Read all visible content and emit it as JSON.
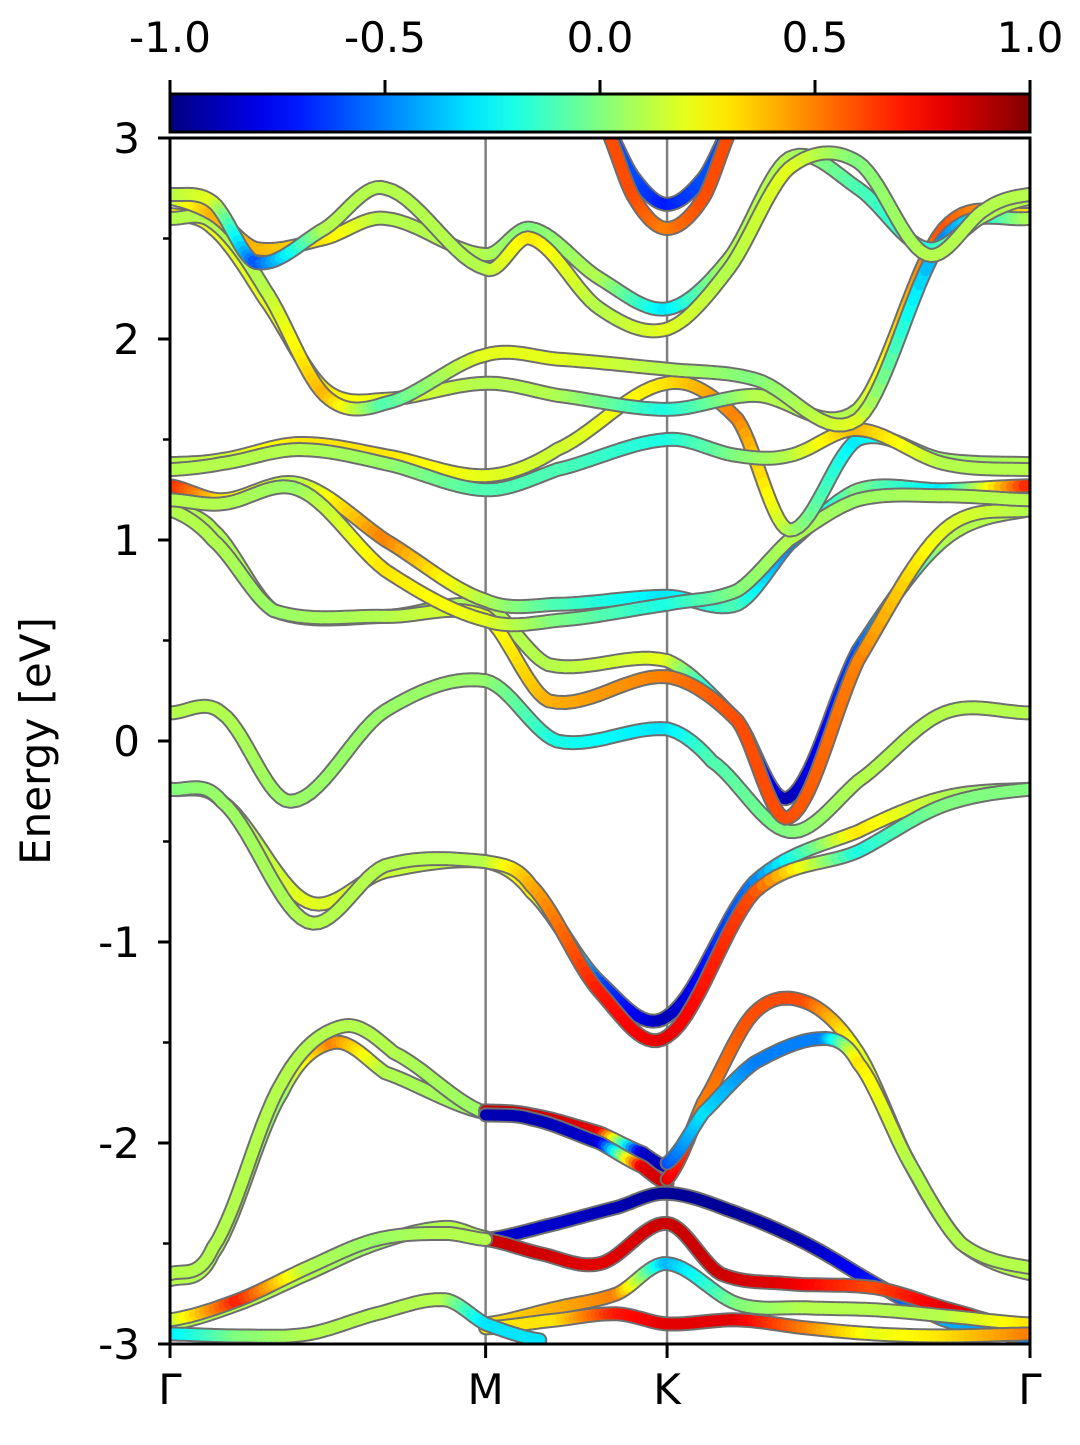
{
  "chart_data": {
    "type": "line",
    "ylabel": "Energy [eV]",
    "ylim": [
      -3,
      3
    ],
    "yticks": [
      -3,
      -2,
      -1,
      0,
      1,
      2,
      3
    ],
    "ytick_labels": [
      "-3",
      "-2",
      "-1",
      "0",
      "1",
      "2",
      "3"
    ],
    "ytick_minor": [
      -2.5,
      -1.5,
      -0.5,
      0.5,
      1.5,
      2.5
    ],
    "xlim": [
      0,
      1
    ],
    "kpoints": [
      {
        "label": "Γ",
        "x": 0.0
      },
      {
        "label": "M",
        "x": 0.367
      },
      {
        "label": "K",
        "x": 0.578
      },
      {
        "label": "Γ",
        "x": 1.0
      }
    ],
    "colorbar": {
      "colormap": "jet",
      "min": -1.0,
      "max": 1.0,
      "ticks": [
        -1.0,
        -0.5,
        0.0,
        0.5,
        1.0
      ],
      "tick_labels": [
        "-1.0",
        "-0.5",
        "0.0",
        "0.5",
        "1.0"
      ]
    },
    "bands": [
      {
        "x": [
          0,
          0.06,
          0.16,
          0.25,
          0.367,
          0.42,
          0.5,
          0.578,
          0.68,
          0.8,
          0.9,
          1.0
        ],
        "y": [
          -0.24,
          -0.3,
          -0.8,
          -0.65,
          -0.6,
          -0.75,
          -1.2,
          -1.37,
          -0.7,
          -0.45,
          -0.28,
          -0.24
        ],
        "c": [
          0.0,
          0.05,
          0.2,
          0.15,
          0.1,
          0.3,
          -0.6,
          -0.9,
          -0.5,
          0.3,
          0.1,
          0.0
        ]
      },
      {
        "x": [
          0,
          0.06,
          0.16,
          0.25,
          0.367,
          0.42,
          0.5,
          0.578,
          0.68,
          0.8,
          0.9,
          1.0
        ],
        "y": [
          -0.24,
          -0.3,
          -0.9,
          -0.62,
          -0.6,
          -0.72,
          -1.25,
          -1.47,
          -0.75,
          -0.55,
          -0.32,
          -0.24
        ],
        "c": [
          0.0,
          0.05,
          0.1,
          0.1,
          0.1,
          0.4,
          0.7,
          0.8,
          0.6,
          -0.2,
          0.0,
          0.0
        ]
      },
      {
        "x": [
          0,
          0.06,
          0.14,
          0.25,
          0.367,
          0.45,
          0.578,
          0.63,
          0.72,
          0.8,
          0.9,
          1.0
        ],
        "y": [
          0.14,
          0.14,
          -0.3,
          0.15,
          0.3,
          0.0,
          0.06,
          -0.1,
          -0.45,
          -0.2,
          0.14,
          0.14
        ],
        "c": [
          0.1,
          0.1,
          0.05,
          0.05,
          0.05,
          -0.2,
          -0.3,
          -0.1,
          0.0,
          0.1,
          0.1,
          0.1
        ]
      },
      {
        "x": [
          0,
          0.05,
          0.12,
          0.25,
          0.367,
          0.44,
          0.578,
          0.66,
          0.72,
          0.8,
          0.9,
          1.0
        ],
        "y": [
          1.15,
          1.05,
          0.65,
          0.62,
          0.67,
          0.38,
          0.4,
          0.1,
          -0.28,
          0.45,
          1.0,
          1.15
        ],
        "c": [
          0.1,
          0.1,
          0.05,
          0.05,
          0.1,
          0.1,
          0.2,
          -0.5,
          -0.9,
          -0.6,
          0.1,
          0.1
        ]
      },
      {
        "x": [
          0,
          0.05,
          0.12,
          0.25,
          0.367,
          0.44,
          0.578,
          0.66,
          0.72,
          0.8,
          0.9,
          1.0
        ],
        "y": [
          1.15,
          1.0,
          0.65,
          0.62,
          0.62,
          0.2,
          0.32,
          0.1,
          -0.38,
          0.4,
          1.05,
          1.15
        ],
        "c": [
          0.1,
          0.1,
          0.05,
          0.1,
          0.2,
          0.4,
          0.5,
          0.6,
          0.6,
          0.5,
          0.2,
          0.1
        ]
      },
      {
        "x": [
          0,
          0.06,
          0.15,
          0.25,
          0.367,
          0.45,
          0.578,
          0.66,
          0.72,
          0.8,
          0.9,
          1.0
        ],
        "y": [
          1.27,
          1.2,
          1.28,
          1.0,
          0.7,
          0.68,
          0.72,
          0.68,
          0.98,
          1.25,
          1.25,
          1.27
        ],
        "c": [
          0.7,
          0.3,
          0.1,
          0.5,
          0.1,
          -0.1,
          -0.3,
          -0.1,
          -0.5,
          0.0,
          -0.3,
          0.7
        ]
      },
      {
        "x": [
          0,
          0.06,
          0.15,
          0.25,
          0.367,
          0.45,
          0.578,
          0.66,
          0.72,
          0.8,
          0.9,
          1.0
        ],
        "y": [
          1.2,
          1.18,
          1.25,
          0.85,
          0.6,
          0.6,
          0.68,
          0.75,
          1.0,
          1.2,
          1.22,
          1.2
        ],
        "c": [
          0.1,
          0.1,
          0.05,
          0.3,
          0.2,
          0.0,
          -0.2,
          0.0,
          0.1,
          0.05,
          0.1,
          0.1
        ]
      },
      {
        "x": [
          0,
          0.06,
          0.15,
          0.25,
          0.367,
          0.45,
          0.578,
          0.66,
          0.72,
          0.8,
          0.9,
          1.0
        ],
        "y": [
          1.38,
          1.4,
          1.48,
          1.42,
          1.32,
          1.45,
          1.78,
          1.6,
          1.05,
          1.5,
          1.4,
          1.38
        ],
        "c": [
          0.1,
          0.15,
          0.3,
          0.3,
          0.2,
          0.15,
          0.3,
          0.5,
          0.1,
          -0.3,
          0.05,
          0.1
        ]
      },
      {
        "x": [
          0,
          0.06,
          0.15,
          0.25,
          0.367,
          0.45,
          0.578,
          0.66,
          0.72,
          0.8,
          0.9,
          1.0
        ],
        "y": [
          1.35,
          1.38,
          1.45,
          1.38,
          1.25,
          1.35,
          1.5,
          1.42,
          1.42,
          1.55,
          1.38,
          1.35
        ],
        "c": [
          0.1,
          0.1,
          0.1,
          0.05,
          -0.1,
          -0.1,
          -0.2,
          0.0,
          0.1,
          0.4,
          0.1,
          0.1
        ]
      },
      {
        "x": [
          0,
          0.05,
          0.11,
          0.18,
          0.25,
          0.367,
          0.45,
          0.578,
          0.68,
          0.8,
          0.9,
          1.0
        ],
        "y": [
          2.62,
          2.55,
          2.2,
          1.75,
          1.7,
          1.78,
          1.72,
          1.65,
          1.72,
          1.65,
          2.55,
          2.62
        ],
        "c": [
          0.3,
          0.2,
          0.2,
          0.3,
          0.2,
          0.1,
          0.1,
          -0.2,
          0.1,
          0.1,
          0.6,
          0.3
        ]
      },
      {
        "x": [
          0,
          0.05,
          0.11,
          0.18,
          0.25,
          0.367,
          0.45,
          0.578,
          0.68,
          0.8,
          0.9,
          1.0
        ],
        "y": [
          2.6,
          2.58,
          2.25,
          1.72,
          1.68,
          1.92,
          1.9,
          1.85,
          1.8,
          1.6,
          2.5,
          2.6
        ],
        "c": [
          0.1,
          0.1,
          0.1,
          0.4,
          -0.1,
          0.2,
          0.2,
          0.1,
          0.0,
          0.2,
          -0.5,
          0.1
        ]
      },
      {
        "x": [
          0,
          0.05,
          0.1,
          0.18,
          0.25,
          0.367,
          0.42,
          0.5,
          0.578,
          0.65,
          0.72,
          0.8,
          0.88,
          0.95,
          1.0
        ],
        "y": [
          2.7,
          2.62,
          2.45,
          2.5,
          2.6,
          2.42,
          2.55,
          2.3,
          2.15,
          2.4,
          2.9,
          2.75,
          2.45,
          2.62,
          2.7
        ],
        "c": [
          0.1,
          0.4,
          0.4,
          0.3,
          0.1,
          0.1,
          0.0,
          0.1,
          -0.3,
          0.1,
          0.1,
          -0.1,
          -0.2,
          0.1,
          0.1
        ]
      },
      {
        "x": [
          0,
          0.05,
          0.1,
          0.18,
          0.25,
          0.367,
          0.42,
          0.5,
          0.578,
          0.65,
          0.72,
          0.8,
          0.88,
          0.95,
          1.0
        ],
        "y": [
          2.72,
          2.68,
          2.38,
          2.55,
          2.75,
          2.35,
          2.5,
          2.15,
          2.05,
          2.35,
          2.85,
          2.88,
          2.42,
          2.65,
          2.72
        ],
        "c": [
          0.1,
          0.2,
          -0.6,
          0.1,
          0.1,
          0.1,
          0.3,
          0.1,
          0.2,
          0.1,
          0.2,
          0.0,
          0.1,
          0.1,
          0.1
        ]
      },
      {
        "x": [
          0.5,
          0.54,
          0.578,
          0.62,
          0.66
        ],
        "y": [
          3.1,
          2.8,
          2.67,
          2.8,
          3.1
        ],
        "c": [
          -0.6,
          -0.6,
          -0.7,
          -0.6,
          -0.6
        ]
      },
      {
        "x": [
          0.5,
          0.54,
          0.578,
          0.62,
          0.66
        ],
        "y": [
          3.1,
          2.7,
          2.55,
          2.7,
          3.1
        ],
        "c": [
          0.6,
          0.6,
          0.5,
          0.6,
          0.6
        ]
      },
      {
        "x": [
          0,
          0.05,
          0.13,
          0.19,
          0.25,
          0.367
        ],
        "y": [
          -2.68,
          -2.55,
          -1.75,
          -1.5,
          -1.65,
          -1.85
        ],
        "c": [
          0.1,
          0.1,
          0.05,
          0.5,
          0.1,
          0.05
        ]
      },
      {
        "x": [
          0,
          0.05,
          0.13,
          0.2,
          0.26,
          0.367
        ],
        "y": [
          -2.65,
          -2.52,
          -1.7,
          -1.42,
          -1.55,
          -1.85
        ],
        "c": [
          0.1,
          0.1,
          0.1,
          0.1,
          0.1,
          0.05
        ]
      },
      {
        "x": [
          0.367,
          0.42,
          0.5,
          0.55,
          0.578
        ],
        "y": [
          -1.84,
          -1.86,
          -1.95,
          -2.05,
          -2.12
        ],
        "c": [
          0.85,
          0.85,
          0.8,
          -0.85,
          -0.9
        ]
      },
      {
        "x": [
          0.367,
          0.42,
          0.5,
          0.55,
          0.578
        ],
        "y": [
          -1.86,
          -1.88,
          -2.0,
          -2.12,
          -2.2
        ],
        "c": [
          -0.9,
          -0.9,
          -0.85,
          0.8,
          0.85
        ]
      },
      {
        "x": [
          0.578,
          0.62,
          0.68,
          0.74,
          0.8,
          0.86,
          0.92,
          1.0
        ],
        "y": [
          -2.18,
          -1.8,
          -1.35,
          -1.3,
          -1.55,
          -2.1,
          -2.5,
          -2.65
        ],
        "c": [
          0.8,
          0.5,
          0.6,
          0.6,
          0.2,
          0.1,
          0.1,
          0.1
        ]
      },
      {
        "x": [
          0.578,
          0.62,
          0.68,
          0.76,
          0.8,
          0.86,
          0.92,
          1.0
        ],
        "y": [
          -2.1,
          -1.85,
          -1.6,
          -1.48,
          -1.6,
          -2.1,
          -2.5,
          -2.62
        ],
        "c": [
          -0.6,
          -0.3,
          -0.5,
          -0.5,
          0.3,
          0.1,
          0.1,
          0.1
        ]
      },
      {
        "x": [
          0.367,
          0.45,
          0.52,
          0.578,
          0.66,
          0.74,
          0.82,
          0.9,
          1.0
        ],
        "y": [
          -2.48,
          -2.4,
          -2.32,
          -2.25,
          -2.35,
          -2.5,
          -2.7,
          -2.88,
          -2.97
        ],
        "c": [
          -0.85,
          -0.85,
          -0.9,
          -0.95,
          -0.95,
          -0.9,
          -0.7,
          -0.4,
          -0.5
        ]
      },
      {
        "x": [
          0.367,
          0.43,
          0.5,
          0.578,
          0.64,
          0.72,
          0.82,
          0.9,
          1.0
        ],
        "y": [
          -2.48,
          -2.55,
          -2.6,
          -2.4,
          -2.65,
          -2.7,
          -2.72,
          -2.82,
          -2.93
        ],
        "c": [
          0.85,
          0.85,
          0.8,
          0.85,
          0.85,
          0.8,
          0.6,
          0.8,
          0.8
        ]
      },
      {
        "x": [
          0,
          0.08,
          0.16,
          0.24,
          0.32,
          0.367
        ],
        "y": [
          -2.9,
          -2.8,
          -2.65,
          -2.5,
          -2.42,
          -2.47
        ],
        "c": [
          0.1,
          0.1,
          0.1,
          0.05,
          0.1,
          0.1
        ]
      },
      {
        "x": [
          0,
          0.08,
          0.16,
          0.24,
          0.32,
          0.367
        ],
        "y": [
          -2.88,
          -2.78,
          -2.62,
          -2.48,
          -2.45,
          -2.48
        ],
        "c": [
          0.1,
          0.7,
          0.1,
          0.05,
          0.1,
          0.1
        ]
      },
      {
        "x": [
          0.367,
          0.45,
          0.52,
          0.578,
          0.66,
          0.74,
          0.82,
          0.9,
          1.0
        ],
        "y": [
          -2.9,
          -2.82,
          -2.75,
          -2.6,
          -2.8,
          -2.82,
          -2.83,
          -2.86,
          -2.9
        ],
        "c": [
          0.3,
          0.4,
          0.5,
          -0.4,
          0.0,
          0.1,
          0.1,
          0.1,
          0.3
        ]
      },
      {
        "x": [
          0.367,
          0.45,
          0.52,
          0.578,
          0.66,
          0.74,
          0.82,
          0.9,
          1.0
        ],
        "y": [
          -2.92,
          -2.88,
          -2.85,
          -2.9,
          -2.88,
          -2.92,
          -2.95,
          -2.96,
          -2.95
        ],
        "c": [
          0.3,
          0.3,
          0.7,
          0.8,
          0.8,
          0.5,
          0.2,
          0.3,
          0.5
        ]
      },
      {
        "x": [
          0,
          0.08,
          0.16,
          0.24,
          0.32,
          0.367,
          0.43
        ],
        "y": [
          -2.95,
          -2.96,
          -2.95,
          -2.85,
          -2.78,
          -2.9,
          -2.98
        ],
        "c": [
          -0.3,
          0.0,
          0.1,
          0.1,
          0.1,
          -0.3,
          -0.3
        ]
      }
    ]
  }
}
